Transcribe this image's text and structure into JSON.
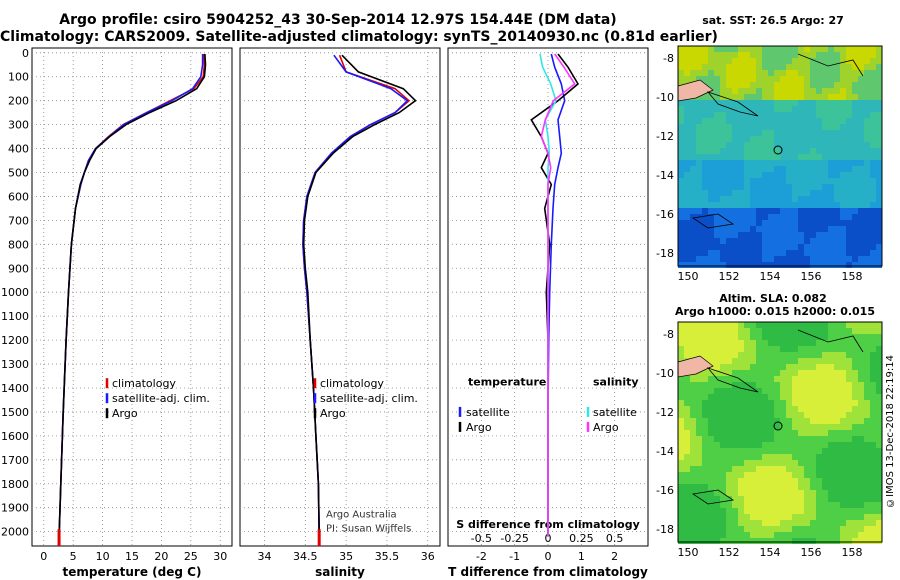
{
  "header": {
    "line1": "Argo profile: csiro 5904252_43 30-Sep-2014 12.97S 154.44E (DM data)",
    "line2": "Climatology: CARS2009. Satellite-adjusted climatology: synTS_20140930.nc (0.81d earlier)"
  },
  "depth_ticks": [
    "0",
    "100",
    "200",
    "300",
    "400",
    "500",
    "600",
    "700",
    "800",
    "900",
    "1000",
    "1100",
    "1200",
    "1300",
    "1400",
    "1500",
    "1600",
    "1700",
    "1800",
    "1900",
    "2000"
  ],
  "colors": {
    "argo": "#000000",
    "climatology": "#e00000",
    "satellite": "#1a1aff",
    "sat_salinity": "#33e6e6",
    "argo_salinity": "#ff33ff"
  },
  "chart_data": [
    {
      "type": "line",
      "id": "temperature",
      "xlabel": "temperature (deg C)",
      "ylabel": "depth",
      "xlim": [
        -2,
        32
      ],
      "ylim": [
        2060,
        -20
      ],
      "xticks": [
        "0",
        "5",
        "10",
        "15",
        "20",
        "25",
        "30"
      ],
      "legend": [
        "climatology",
        "satellite-adj. clim.",
        "Argo"
      ],
      "series": [
        {
          "name": "climatology",
          "x": [
            27.2,
            27.3,
            27.1,
            25.5,
            21.5,
            17.5,
            13.5,
            11.0,
            8.8,
            7.6,
            6.9,
            6.3,
            5.4,
            4.7,
            4.2,
            3.8,
            3.3,
            2.9,
            2.6
          ],
          "y": [
            5,
            50,
            100,
            150,
            200,
            250,
            300,
            350,
            400,
            450,
            500,
            550,
            650,
            800,
            1000,
            1200,
            1500,
            1800,
            2020
          ]
        },
        {
          "name": "satellite-adj. clim.",
          "x": [
            27.0,
            27.0,
            26.7,
            25.3,
            21.8,
            17.5,
            13.6,
            11.1,
            8.8,
            7.6,
            6.9,
            6.3,
            5.4,
            4.7,
            4.2,
            3.8,
            3.3,
            2.9,
            2.6
          ],
          "y": [
            5,
            50,
            100,
            150,
            200,
            250,
            300,
            350,
            400,
            450,
            500,
            550,
            650,
            800,
            1000,
            1200,
            1500,
            1800,
            2020
          ]
        },
        {
          "name": "Argo",
          "x": [
            27.4,
            27.5,
            27.3,
            26.0,
            22.5,
            18.0,
            14.0,
            11.2,
            8.9,
            7.8,
            6.9,
            6.2,
            5.4,
            4.7,
            4.2,
            3.8,
            3.3,
            2.9,
            2.6
          ],
          "y": [
            5,
            50,
            100,
            150,
            200,
            250,
            300,
            350,
            400,
            450,
            500,
            550,
            650,
            800,
            1000,
            1200,
            1500,
            1800,
            2020
          ]
        }
      ]
    },
    {
      "type": "line",
      "id": "salinity",
      "xlabel": "salinity",
      "ylabel": "depth",
      "xlim": [
        33.7,
        36.15
      ],
      "ylim": [
        2060,
        -20
      ],
      "xticks": [
        "34",
        "34.5",
        "35",
        "35.5",
        "36"
      ],
      "legend": [
        "climatology",
        "satellite-adj. clim.",
        "Argo"
      ],
      "annotation": [
        "Argo Australia",
        "PI: Susan Wijffels"
      ],
      "series": [
        {
          "name": "climatology",
          "x": [
            34.92,
            35.0,
            35.6,
            35.77,
            35.6,
            35.3,
            35.05,
            34.82,
            34.62,
            34.52,
            34.48,
            34.47,
            34.49,
            34.52,
            34.56,
            34.6,
            34.63,
            34.66,
            34.67
          ],
          "y": [
            10,
            80,
            150,
            200,
            250,
            300,
            350,
            420,
            500,
            600,
            700,
            800,
            900,
            1000,
            1200,
            1400,
            1600,
            1800,
            2020
          ]
        },
        {
          "name": "satellite-adj. clim.",
          "x": [
            34.85,
            35.0,
            35.55,
            35.75,
            35.6,
            35.3,
            35.05,
            34.82,
            34.62,
            34.52,
            34.48,
            34.47,
            34.49,
            34.52,
            34.56,
            34.6,
            34.63,
            34.66,
            34.67
          ],
          "y": [
            10,
            80,
            150,
            200,
            250,
            300,
            350,
            420,
            500,
            600,
            700,
            800,
            900,
            1000,
            1200,
            1400,
            1600,
            1800,
            2020
          ]
        },
        {
          "name": "Argo",
          "x": [
            34.95,
            35.15,
            35.7,
            35.85,
            35.65,
            35.35,
            35.08,
            34.84,
            34.63,
            34.53,
            34.49,
            34.48,
            34.5,
            34.53,
            34.56,
            34.6,
            34.63,
            34.66,
            34.67
          ],
          "y": [
            10,
            80,
            150,
            200,
            250,
            300,
            350,
            420,
            500,
            600,
            700,
            800,
            900,
            1000,
            1200,
            1400,
            1600,
            1800,
            2020
          ]
        }
      ]
    },
    {
      "type": "line",
      "id": "difference",
      "xlabel": "T difference from climatology",
      "top_xlabel": "S difference from climatology",
      "ylabel": "depth",
      "xlim": [
        -3,
        3
      ],
      "ylim": [
        2060,
        -20
      ],
      "xticks": [
        "-2",
        "-1",
        "0",
        "1",
        "2"
      ],
      "top_xticks": [
        "-0.5",
        "-0.25",
        "0",
        "0.25",
        "0.5"
      ],
      "legend_left_title": "temperature",
      "legend_right_title": "salinity",
      "legend_left": [
        "satellite",
        "Argo"
      ],
      "legend_right": [
        "satellite",
        "Argo"
      ],
      "series": [
        {
          "name": "T satellite",
          "x": [
            0.1,
            0.2,
            0.4,
            0.5,
            0.3,
            0.35,
            0.4,
            0.3,
            0.2,
            0.15,
            0.1,
            0.05,
            0.02,
            0.0,
            0.0,
            0.0
          ],
          "y": [
            5,
            60,
            130,
            200,
            280,
            350,
            420,
            480,
            550,
            650,
            800,
            1000,
            1200,
            1500,
            1800,
            2020
          ]
        },
        {
          "name": "T Argo",
          "x": [
            0.3,
            0.6,
            0.9,
            0.3,
            -0.5,
            -0.2,
            0.0,
            -0.2,
            0.1,
            -0.1,
            0.05,
            -0.05,
            0.0,
            0.0,
            0.0,
            0.0
          ],
          "y": [
            5,
            60,
            130,
            200,
            280,
            350,
            420,
            480,
            550,
            650,
            800,
            1000,
            1200,
            1500,
            1800,
            2020
          ]
        },
        {
          "name": "S satellite",
          "x": [
            -0.06,
            -0.04,
            0.02,
            0.06,
            -0.02,
            0.0,
            0.01,
            0.0,
            0.0,
            0.0,
            0.0,
            0.0,
            0.0,
            0.0,
            0.0,
            0.0
          ],
          "y": [
            5,
            60,
            130,
            200,
            280,
            350,
            420,
            480,
            550,
            650,
            800,
            1000,
            1200,
            1500,
            1800,
            2020
          ]
        },
        {
          "name": "S Argo",
          "x": [
            0.05,
            0.12,
            0.2,
            0.04,
            -0.02,
            -0.05,
            0.0,
            0.02,
            0.0,
            0.0,
            0.0,
            0.0,
            0.0,
            0.0,
            0.0,
            0.0
          ],
          "y": [
            5,
            60,
            130,
            200,
            280,
            350,
            420,
            480,
            550,
            650,
            800,
            1000,
            1200,
            1500,
            1800,
            2020
          ]
        }
      ]
    }
  ],
  "maps": {
    "sst": {
      "title": "sat. SST: 26.5 Argo: 27",
      "xticks": [
        "150",
        "152",
        "154",
        "156",
        "158"
      ],
      "yticks": [
        "-8",
        "-10",
        "-12",
        "-14",
        "-16",
        "-18"
      ]
    },
    "sla": {
      "title1": "Altim. SLA: 0.082",
      "title2": "Argo h1000: 0.015 h2000: 0.015",
      "xticks": [
        "150",
        "152",
        "154",
        "156",
        "158"
      ],
      "yticks": [
        "-8",
        "-10",
        "-12",
        "-14",
        "-16",
        "-18"
      ]
    }
  },
  "watermark": "©IMOS 13-Dec-2018 22:19:14"
}
